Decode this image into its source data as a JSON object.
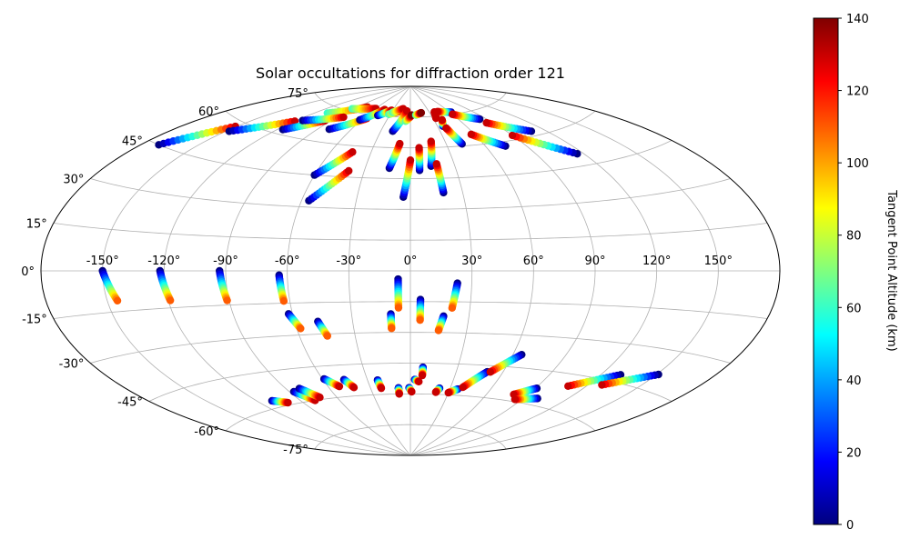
{
  "chart_data": {
    "type": "scatter",
    "projection": "aitoff",
    "title": "Solar occultations for diffraction order 121",
    "x_tick_labels": [
      "-150°",
      "-120°",
      "-90°",
      "-60°",
      "-30°",
      "0°",
      "30°",
      "60°",
      "90°",
      "120°",
      "150°"
    ],
    "x_ticks": [
      -150,
      -120,
      -90,
      -60,
      -30,
      0,
      30,
      60,
      90,
      120,
      150
    ],
    "y_tick_labels": [
      "-75°",
      "-60°",
      "-45°",
      "-30°",
      "-15°",
      "0°",
      "15°",
      "30°",
      "45°",
      "60°",
      "75°"
    ],
    "y_ticks": [
      -75,
      -60,
      -45,
      -30,
      -15,
      0,
      15,
      30,
      45,
      60,
      75
    ],
    "grid": true,
    "colorbar": {
      "label": "Tangent Point Altitude (km)",
      "min": 0,
      "max": 140,
      "ticks": [
        0,
        20,
        40,
        60,
        80,
        100,
        120,
        140
      ],
      "tick_labels": [
        "0",
        "20",
        "40",
        "60",
        "80",
        "100",
        "120",
        "140"
      ],
      "colormap": "jet",
      "colors": [
        "#00007f",
        "#0000ff",
        "#007fff",
        "#00ffff",
        "#7fff7f",
        "#ffff00",
        "#ff7f00",
        "#ff0000",
        "#7f0000"
      ]
    },
    "tracks": [
      {
        "lon": [
          -171,
          -151
        ],
        "lat": [
          45,
          58
        ],
        "alt": [
          0,
          130
        ]
      },
      {
        "lon": [
          -148,
          -120
        ],
        "lat": [
          56,
          66
        ],
        "alt": [
          0,
          130
        ]
      },
      {
        "lon": [
          -116,
          -96
        ],
        "lat": [
          62,
          69
        ],
        "alt": [
          0,
          130
        ]
      },
      {
        "lon": [
          -108,
          -76
        ],
        "lat": [
          72,
          78
        ],
        "alt": [
          60,
          130
        ]
      },
      {
        "lon": [
          -92,
          -60
        ],
        "lat": [
          76,
          78
        ],
        "alt": [
          60,
          130
        ]
      },
      {
        "lon": [
          -115,
          -84
        ],
        "lat": [
          67,
          72
        ],
        "alt": [
          0,
          130
        ]
      },
      {
        "lon": [
          -80,
          -56
        ],
        "lat": [
          66,
          73
        ],
        "alt": [
          0,
          130
        ]
      },
      {
        "lon": [
          -62,
          -44
        ],
        "lat": [
          72,
          78
        ],
        "alt": [
          0,
          130
        ]
      },
      {
        "lon": [
          -46,
          -32
        ],
        "lat": [
          75,
          78
        ],
        "alt": [
          0,
          130
        ]
      },
      {
        "lon": [
          -32,
          -16
        ],
        "lat": [
          76,
          78
        ],
        "alt": [
          60,
          130
        ]
      },
      {
        "lon": [
          -28,
          -13
        ],
        "lat": [
          77,
          79
        ],
        "alt": [
          60,
          130
        ]
      },
      {
        "lon": [
          -18,
          -6
        ],
        "lat": [
          68,
          78
        ],
        "alt": [
          0,
          130
        ]
      },
      {
        "lon": [
          -60,
          -44
        ],
        "lat": [
          45,
          57
        ],
        "alt": [
          0,
          130
        ]
      },
      {
        "lon": [
          -56,
          -40
        ],
        "lat": [
          33,
          48
        ],
        "alt": [
          0,
          130
        ]
      },
      {
        "lon": [
          -14,
          -9
        ],
        "lat": [
          50,
          62
        ],
        "alt": [
          0,
          130
        ]
      },
      {
        "lon": [
          -4,
          0
        ],
        "lat": [
          36,
          54
        ],
        "alt": [
          0,
          130
        ]
      },
      {
        "lon": [
          6,
          7
        ],
        "lat": [
          49,
          60
        ],
        "alt": [
          0,
          130
        ]
      },
      {
        "lon": [
          14,
          18
        ],
        "lat": [
          51,
          63
        ],
        "alt": [
          0,
          130
        ]
      },
      {
        "lon": [
          19,
          18
        ],
        "lat": [
          38,
          52
        ],
        "alt": [
          0,
          130
        ]
      },
      {
        "lon": [
          -6,
          2
        ],
        "lat": [
          73,
          76
        ],
        "alt": [
          60,
          140
        ]
      },
      {
        "lon": [
          8,
          17
        ],
        "lat": [
          76,
          77
        ],
        "alt": [
          60,
          140
        ]
      },
      {
        "lon": [
          34,
          38
        ],
        "lat": [
          74,
          77
        ],
        "alt": [
          130,
          130
        ]
      },
      {
        "lon": [
          36,
          40
        ],
        "lat": [
          70,
          73
        ],
        "alt": [
          0,
          130
        ]
      },
      {
        "lon": [
          43,
          38
        ],
        "lat": [
          61,
          69
        ],
        "alt": [
          0,
          130
        ]
      },
      {
        "lon": [
          62,
          43
        ],
        "lat": [
          76,
          77
        ],
        "alt": [
          0,
          130
        ]
      },
      {
        "lon": [
          75,
          57
        ],
        "lat": [
          58,
          65
        ],
        "alt": [
          0,
          130
        ]
      },
      {
        "lon": [
          83,
          60
        ],
        "lat": [
          71,
          75
        ],
        "alt": [
          0,
          130
        ]
      },
      {
        "lon": [
          116,
          90
        ],
        "lat": [
          50,
          62
        ],
        "alt": [
          0,
          130
        ]
      },
      {
        "lon": [
          109,
          84
        ],
        "lat": [
          62,
          69
        ],
        "alt": [
          0,
          130
        ]
      },
      {
        "lon": [
          -150,
          -145
        ],
        "lat": [
          0,
          -11
        ],
        "alt": [
          0,
          110
        ]
      },
      {
        "lon": [
          -122,
          -119
        ],
        "lat": [
          0,
          -12
        ],
        "alt": [
          0,
          110
        ]
      },
      {
        "lon": [
          -93,
          -91
        ],
        "lat": [
          0,
          -13
        ],
        "alt": [
          0,
          110
        ]
      },
      {
        "lon": [
          -64,
          -63
        ],
        "lat": [
          -2,
          -14
        ],
        "alt": [
          0,
          110
        ]
      },
      {
        "lon": [
          -62,
          -58
        ],
        "lat": [
          -20,
          -27
        ],
        "alt": [
          0,
          110
        ]
      },
      {
        "lon": [
          -48,
          -45
        ],
        "lat": [
          -24,
          -31
        ],
        "alt": [
          0,
          110
        ]
      },
      {
        "lon": [
          -10,
          -10
        ],
        "lat": [
          -21,
          -28
        ],
        "alt": [
          0,
          110
        ]
      },
      {
        "lon": [
          -6,
          -6
        ],
        "lat": [
          -4,
          -18
        ],
        "alt": [
          0,
          110
        ]
      },
      {
        "lon": [
          5,
          5
        ],
        "lat": [
          -14,
          -24
        ],
        "alt": [
          0,
          110
        ]
      },
      {
        "lon": [
          23,
          21
        ],
        "lat": [
          -6,
          -18
        ],
        "alt": [
          0,
          110
        ]
      },
      {
        "lon": [
          17,
          15
        ],
        "lat": [
          -22,
          -29
        ],
        "alt": [
          0,
          110
        ]
      },
      {
        "lon": [
          -110,
          -101
        ],
        "lat": [
          -57,
          -59
        ],
        "alt": [
          0,
          130
        ]
      },
      {
        "lon": [
          -87,
          -79
        ],
        "lat": [
          -55,
          -60
        ],
        "alt": [
          0,
          130
        ]
      },
      {
        "lon": [
          -81,
          -73
        ],
        "lat": [
          -54,
          -59
        ],
        "alt": [
          0,
          130
        ]
      },
      {
        "lon": [
          -59,
          -52
        ],
        "lat": [
          -51,
          -55
        ],
        "alt": [
          0,
          130
        ]
      },
      {
        "lon": [
          -46,
          -42
        ],
        "lat": [
          -52,
          -56
        ],
        "alt": [
          0,
          130
        ]
      },
      {
        "lon": [
          -23,
          -22
        ],
        "lat": [
          -53,
          -57
        ],
        "alt": [
          0,
          130
        ]
      },
      {
        "lon": [
          -9,
          -9
        ],
        "lat": [
          -57,
          -60
        ],
        "alt": [
          0,
          130
        ]
      },
      {
        "lon": [
          -1,
          1
        ],
        "lat": [
          -57,
          -59
        ],
        "alt": [
          0,
          130
        ]
      },
      {
        "lon": [
          3,
          6
        ],
        "lat": [
          -53,
          -54
        ],
        "alt": [
          0,
          130
        ]
      },
      {
        "lon": [
          8,
          8
        ],
        "lat": [
          -47,
          -51
        ],
        "alt": [
          0,
          130
        ]
      },
      {
        "lon": [
          22,
          20
        ],
        "lat": [
          -57,
          -59
        ],
        "alt": [
          0,
          130
        ]
      },
      {
        "lon": [
          36,
          30
        ],
        "lat": [
          -57,
          -59
        ],
        "alt": [
          0,
          130
        ]
      },
      {
        "lon": [
          50,
          39
        ],
        "lat": [
          -48,
          -56
        ],
        "alt": [
          0,
          130
        ]
      },
      {
        "lon": [
          65,
          52
        ],
        "lat": [
          -39,
          -48
        ],
        "alt": [
          0,
          130
        ]
      },
      {
        "lon": [
          91,
          80
        ],
        "lat": [
          -53,
          -57
        ],
        "alt": [
          0,
          130
        ]
      },
      {
        "lon": [
          100,
          85
        ],
        "lat": [
          -57,
          -59
        ],
        "alt": [
          0,
          130
        ]
      },
      {
        "lon": [
          131,
          109
        ],
        "lat": [
          -42,
          -50
        ],
        "alt": [
          0,
          130
        ]
      },
      {
        "lon": [
          151,
          128
        ],
        "lat": [
          -39,
          -47
        ],
        "alt": [
          0,
          130
        ]
      }
    ]
  }
}
